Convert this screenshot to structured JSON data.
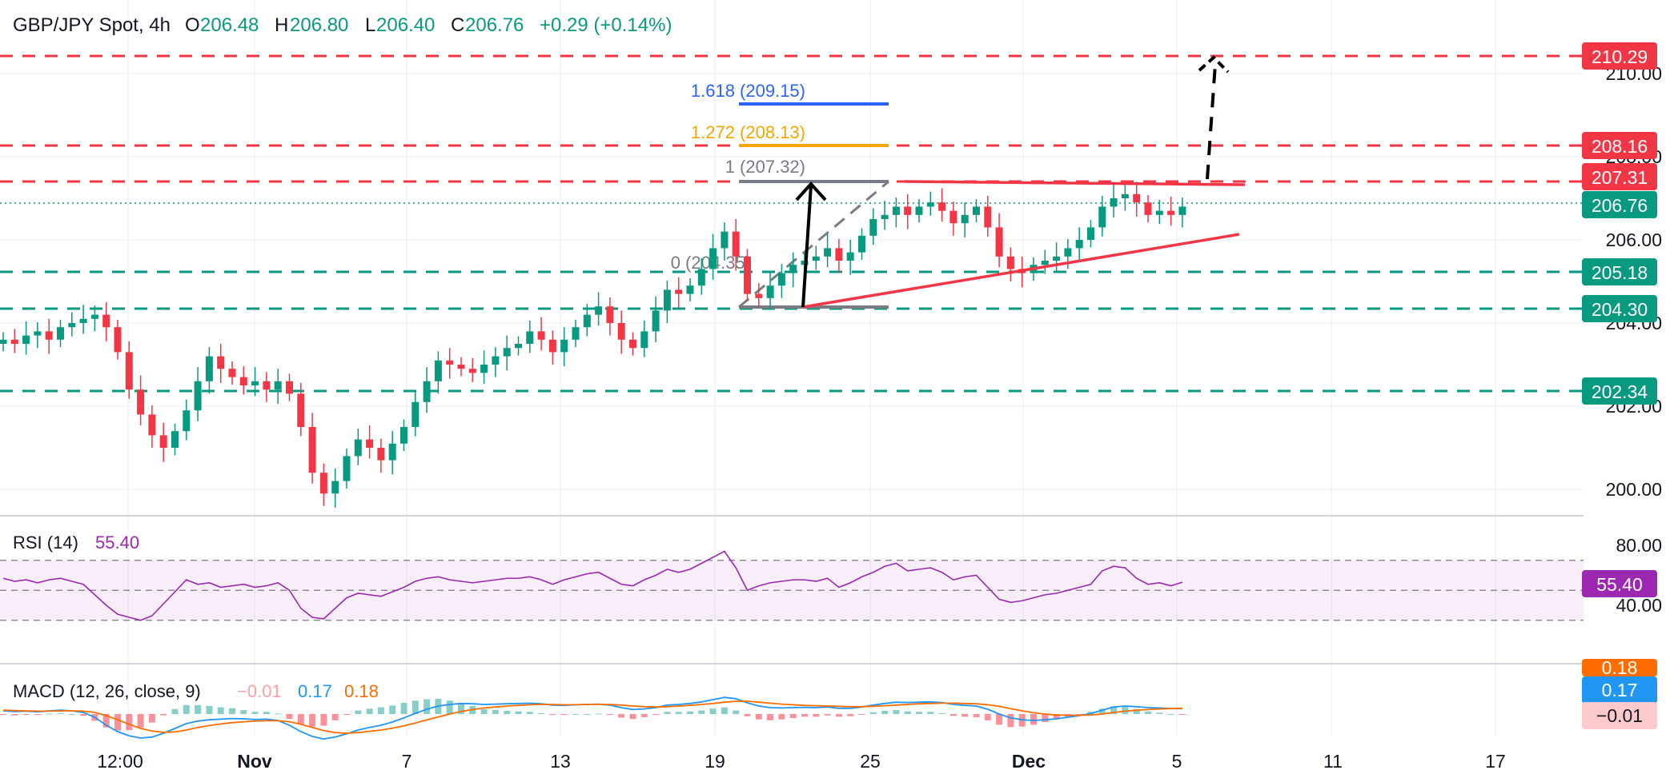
{
  "header": {
    "symbol": "GBP/JPY Spot, 4h",
    "o_label": "O",
    "o_value": "206.48",
    "h_label": "H",
    "h_value": "206.80",
    "l_label": "L",
    "l_value": "206.40",
    "c_label": "C",
    "c_value": "206.76",
    "change": "+0.29 (+0.14%)"
  },
  "colors": {
    "up": "#089981",
    "down": "#f23645",
    "text": "#131722",
    "grid": "#e9ecf1",
    "support": "#089981",
    "resistance": "#f23645",
    "rsi": "#9c27b0",
    "macd": "#2196f3",
    "signal": "#ff6d00",
    "fib_1618": "#2962ff",
    "fib_1272": "#f7a600",
    "fib_1": "#787b86"
  },
  "chart_data": [
    {
      "type": "candlestick",
      "title": "GBP/JPY Spot, 4h",
      "ylim": [
        199.3,
        210.6
      ],
      "yticks": [
        "200.00",
        "202.00",
        "204.00",
        "206.00",
        "208.00",
        "210.00"
      ],
      "xticks": [
        "12:00",
        "Nov",
        "7",
        "13",
        "19",
        "25",
        "Dec",
        "5",
        "11",
        "17"
      ],
      "close_seed": [
        203.6,
        203.5,
        203.7,
        203.8,
        203.6,
        203.9,
        204.0,
        204.1,
        204.2,
        203.9,
        203.3,
        202.4,
        201.8,
        201.3,
        201.0,
        201.4,
        201.9,
        202.6,
        203.2,
        202.9,
        202.7,
        202.5,
        202.6,
        202.4,
        202.6,
        202.3,
        201.5,
        200.4,
        199.9,
        200.2,
        200.8,
        201.2,
        201.0,
        200.7,
        201.1,
        201.5,
        202.1,
        202.6,
        203.1,
        203.0,
        202.9,
        202.8,
        203.0,
        203.2,
        203.4,
        203.5,
        203.8,
        203.6,
        203.3,
        203.6,
        203.9,
        204.2,
        204.4,
        204.0,
        203.6,
        203.4,
        203.8,
        204.3,
        204.8,
        204.7,
        204.9,
        205.3,
        205.8,
        206.2,
        205.6,
        204.7,
        204.6,
        204.9,
        205.2,
        205.4,
        205.5,
        205.6,
        205.8,
        205.5,
        205.7,
        206.1,
        206.5,
        206.6,
        206.8,
        206.6,
        206.8,
        206.9,
        206.7,
        206.4,
        206.6,
        206.8,
        206.3,
        205.6,
        205.3,
        205.2,
        205.4,
        205.5,
        205.6,
        205.8,
        206.0,
        206.3,
        206.8,
        207.0,
        207.1,
        206.9,
        206.6,
        206.7,
        206.6,
        206.8
      ],
      "annotations": {
        "fib": [
          {
            "label": "1.618 (209.15)",
            "value": 209.15
          },
          {
            "label": "1.272 (208.13)",
            "value": 208.13
          },
          {
            "label": "1 (207.32)",
            "value": 207.32
          },
          {
            "label": "0 (204.35)",
            "value": 204.35
          }
        ],
        "resistance": [
          210.29,
          208.16,
          207.31
        ],
        "support": [
          205.18,
          204.3,
          202.34
        ],
        "trendline": [
          [
            204.35,
            206.0
          ]
        ],
        "price_labels": {
          "r1": "210.29",
          "r2": "208.16",
          "r3": "207.31",
          "current": "206.76",
          "s1": "205.18",
          "s2": "204.30",
          "s3": "202.34"
        }
      }
    },
    {
      "type": "line",
      "title": "RSI (14)",
      "value": "55.40",
      "ylim": [
        20,
        90
      ],
      "yticks": [
        "80.00",
        "40.00"
      ],
      "band": [
        30,
        70
      ],
      "series": [
        {
          "name": "RSI (14)",
          "values": [
            58,
            56,
            57,
            55,
            57,
            58,
            56,
            54,
            47,
            40,
            34,
            32,
            30,
            33,
            41,
            49,
            57,
            54,
            55,
            52,
            53,
            54,
            52,
            53,
            55,
            50,
            38,
            32,
            31,
            38,
            45,
            48,
            47,
            46,
            49,
            52,
            56,
            58,
            59,
            57,
            56,
            55,
            56,
            57,
            58,
            58,
            59,
            57,
            54,
            57,
            59,
            61,
            62,
            58,
            54,
            53,
            57,
            60,
            64,
            62,
            64,
            68,
            72,
            76,
            65,
            50,
            53,
            55,
            56,
            57,
            57,
            56,
            58,
            52,
            55,
            59,
            62,
            66,
            68,
            63,
            64,
            65,
            62,
            57,
            59,
            60,
            52,
            44,
            42,
            43,
            45,
            47,
            48,
            50,
            52,
            54,
            63,
            66,
            65,
            58,
            54,
            55,
            53,
            55.4
          ]
        }
      ]
    },
    {
      "type": "bar",
      "title": "MACD (12, 26, close, 9)",
      "values_text": {
        "hist": "−0.01",
        "macd": "0.17",
        "signal": "0.18"
      },
      "labels": {
        "signal_axis": "0.18",
        "macd_axis": "0.17",
        "hist_axis": "−0.01"
      },
      "ylim": [
        -0.9,
        0.9
      ],
      "series": [
        {
          "name": "MACD",
          "values": [
            0.1,
            0.08,
            0.09,
            0.07,
            0.1,
            0.12,
            0.1,
            0.05,
            -0.1,
            -0.35,
            -0.55,
            -0.68,
            -0.75,
            -0.72,
            -0.6,
            -0.45,
            -0.3,
            -0.22,
            -0.18,
            -0.16,
            -0.14,
            -0.15,
            -0.17,
            -0.16,
            -0.2,
            -0.35,
            -0.55,
            -0.7,
            -0.78,
            -0.72,
            -0.62,
            -0.5,
            -0.42,
            -0.35,
            -0.25,
            -0.12,
            0.02,
            0.15,
            0.25,
            0.3,
            0.33,
            0.32,
            0.3,
            0.31,
            0.32,
            0.33,
            0.34,
            0.32,
            0.28,
            0.27,
            0.29,
            0.3,
            0.31,
            0.28,
            0.2,
            0.14,
            0.16,
            0.2,
            0.28,
            0.3,
            0.33,
            0.38,
            0.45,
            0.52,
            0.48,
            0.35,
            0.25,
            0.2,
            0.19,
            0.2,
            0.21,
            0.2,
            0.22,
            0.18,
            0.18,
            0.22,
            0.28,
            0.33,
            0.37,
            0.36,
            0.37,
            0.38,
            0.36,
            0.3,
            0.27,
            0.25,
            0.15,
            0.0,
            -0.12,
            -0.18,
            -0.2,
            -0.18,
            -0.15,
            -0.1,
            -0.05,
            0.02,
            0.12,
            0.22,
            0.25,
            0.23,
            0.2,
            0.19,
            0.17,
            0.17
          ]
        },
        {
          "name": "Signal",
          "values": [
            0.12,
            0.11,
            0.1,
            0.09,
            0.09,
            0.1,
            0.1,
            0.09,
            0.05,
            -0.05,
            -0.18,
            -0.32,
            -0.45,
            -0.53,
            -0.57,
            -0.56,
            -0.5,
            -0.42,
            -0.36,
            -0.31,
            -0.27,
            -0.24,
            -0.22,
            -0.21,
            -0.21,
            -0.24,
            -0.32,
            -0.42,
            -0.52,
            -0.58,
            -0.6,
            -0.58,
            -0.54,
            -0.5,
            -0.44,
            -0.37,
            -0.28,
            -0.18,
            -0.09,
            0.0,
            0.08,
            0.14,
            0.19,
            0.22,
            0.25,
            0.27,
            0.29,
            0.3,
            0.3,
            0.29,
            0.29,
            0.3,
            0.3,
            0.3,
            0.28,
            0.25,
            0.23,
            0.22,
            0.23,
            0.25,
            0.27,
            0.3,
            0.33,
            0.37,
            0.4,
            0.4,
            0.37,
            0.34,
            0.31,
            0.29,
            0.27,
            0.26,
            0.25,
            0.24,
            0.23,
            0.23,
            0.24,
            0.26,
            0.28,
            0.3,
            0.32,
            0.33,
            0.34,
            0.34,
            0.33,
            0.32,
            0.29,
            0.24,
            0.17,
            0.1,
            0.04,
            0.0,
            -0.03,
            -0.04,
            -0.04,
            -0.03,
            0.0,
            0.05,
            0.09,
            0.12,
            0.14,
            0.16,
            0.17,
            0.18
          ]
        }
      ]
    }
  ]
}
